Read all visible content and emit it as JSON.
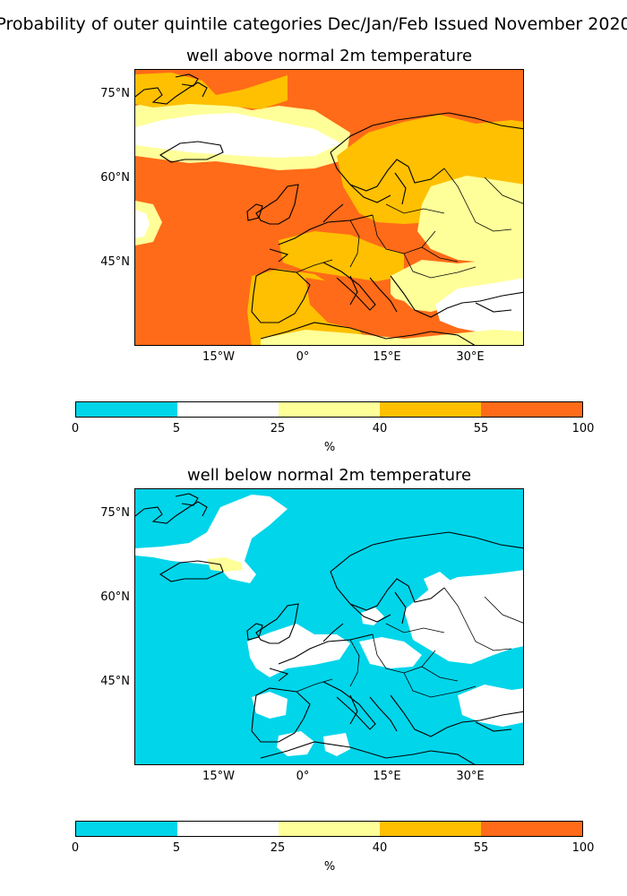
{
  "figure": {
    "suptitle": "Probability of outer quintile categories Dec/Jan/Feb Issued November 2020"
  },
  "panels": [
    {
      "title": "well above normal 2m temperature",
      "lat_labels": [
        "75°N",
        "60°N",
        "45°N"
      ],
      "lon_labels": [
        "15°W",
        "0°",
        "15°E",
        "30°E"
      ],
      "background_category": "55-100",
      "regions": [
        {
          "name": "north-atlantic-and-arctic",
          "category": "55-100"
        },
        {
          "name": "iceland-greenland-band",
          "category": "25-40"
        },
        {
          "name": "iceland-sea",
          "category": "5-25"
        },
        {
          "name": "scandinavia-and-eastern-europe",
          "category": "40-55"
        },
        {
          "name": "balkans-and-turkey",
          "category": "25-40"
        },
        {
          "name": "aegean-and-anatolia",
          "category": "5-25"
        },
        {
          "name": "mediterranean",
          "category": "55-100"
        }
      ]
    },
    {
      "title": "well below normal 2m temperature",
      "lat_labels": [
        "75°N",
        "60°N",
        "45°N"
      ],
      "lon_labels": [
        "15°W",
        "0°",
        "15°E",
        "30°E"
      ],
      "background_category": "0-5",
      "regions": [
        {
          "name": "greenland-sea-patch",
          "category": "5-25"
        },
        {
          "name": "iceland-patch",
          "category": "25-40"
        },
        {
          "name": "western-europe",
          "category": "5-25"
        },
        {
          "name": "eastern-europe",
          "category": "5-25"
        },
        {
          "name": "iberia-and-north-africa-patches",
          "category": "5-25"
        }
      ]
    }
  ],
  "colorbar": {
    "ticks": [
      "0",
      "5",
      "25",
      "40",
      "55",
      "100"
    ],
    "unit": "%",
    "colors": [
      "#00d5ea",
      "#ffffff",
      "#ffff99",
      "#fec000",
      "#ff6b18"
    ],
    "categories": [
      "0-5",
      "5-25",
      "25-40",
      "40-55",
      "55-100"
    ]
  }
}
